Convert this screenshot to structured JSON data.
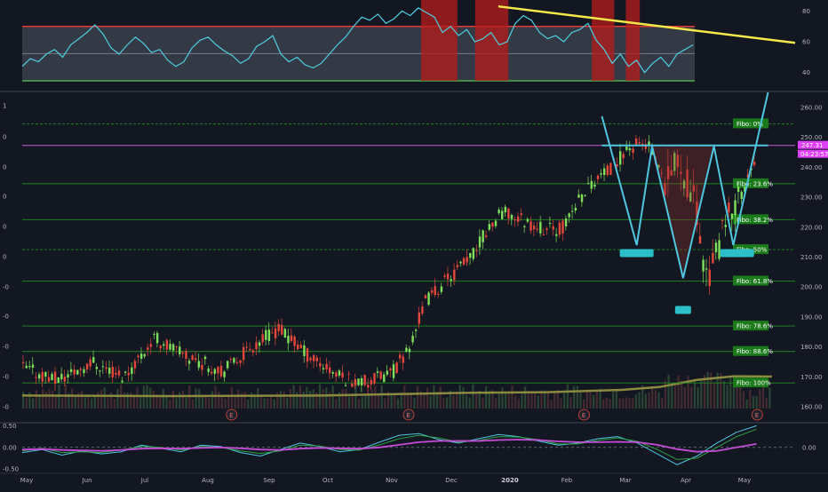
{
  "chart_data": [
    {
      "panel": "rsi",
      "type": "line",
      "y_ticks": [
        "80",
        "60",
        "40"
      ],
      "ylim": [
        30,
        86
      ],
      "band_upper": 70,
      "band_lower": 30,
      "values": [
        44,
        49,
        47,
        52,
        55,
        50,
        58,
        62,
        66,
        71,
        65,
        56,
        52,
        58,
        63,
        59,
        53,
        55,
        48,
        44,
        47,
        56,
        61,
        63,
        58,
        54,
        51,
        46,
        49,
        57,
        60,
        64,
        52,
        47,
        50,
        45,
        43,
        46,
        52,
        58,
        63,
        70,
        76,
        74,
        78,
        72,
        75,
        80,
        77,
        82,
        79,
        76,
        66,
        70,
        64,
        68,
        60,
        62,
        66,
        58,
        60,
        72,
        77,
        74,
        66,
        62,
        64,
        60,
        66,
        68,
        72,
        61,
        55,
        46,
        52,
        44,
        48,
        40,
        46,
        50,
        44,
        52,
        55,
        58
      ],
      "overbought_strips": [
        [
          0.516,
          0.563
        ],
        [
          0.586,
          0.629
        ],
        [
          0.737,
          0.766
        ],
        [
          0.781,
          0.799
        ]
      ],
      "trendline": [
        [
          0.616,
          83
        ],
        [
          1.0,
          57
        ]
      ],
      "colors": {
        "line": "#4dd0e1",
        "upper": "#e53935",
        "lower": "#4caf50",
        "trend": "#f5e94a"
      }
    },
    {
      "panel": "price",
      "type": "candlestick",
      "ylim": [
        155,
        265
      ],
      "y_ticks": [
        "260.00",
        "250.00",
        "240.00",
        "230.00",
        "220.00",
        "210.00",
        "200.00",
        "190.00",
        "180.00",
        "170.00",
        "160.00"
      ],
      "left_ticks": [
        "1",
        "0",
        "0",
        "0",
        "0",
        "0",
        "-0",
        "-0",
        "-0",
        "-0",
        "-0",
        "-1"
      ],
      "trend": [
        [
          0,
          173
        ],
        [
          0.045,
          169
        ],
        [
          0.09,
          175
        ],
        [
          0.13,
          170
        ],
        [
          0.17,
          183
        ],
        [
          0.21,
          177
        ],
        [
          0.26,
          172
        ],
        [
          0.3,
          181
        ],
        [
          0.33,
          186
        ],
        [
          0.37,
          177
        ],
        [
          0.41,
          170
        ],
        [
          0.445,
          168
        ],
        [
          0.48,
          172
        ],
        [
          0.5,
          180
        ],
        [
          0.52,
          195
        ],
        [
          0.55,
          203
        ],
        [
          0.58,
          210
        ],
        [
          0.6,
          219
        ],
        [
          0.62,
          225
        ],
        [
          0.65,
          222
        ],
        [
          0.68,
          219
        ],
        [
          0.7,
          220
        ],
        [
          0.72,
          230
        ],
        [
          0.74,
          236
        ],
        [
          0.76,
          239
        ],
        [
          0.78,
          246
        ],
        [
          0.8,
          248
        ],
        [
          0.81,
          247
        ],
        [
          0.83,
          233
        ],
        [
          0.85,
          243
        ],
        [
          0.87,
          226
        ],
        [
          0.885,
          203
        ],
        [
          0.9,
          213
        ],
        [
          0.92,
          228
        ],
        [
          0.935,
          235
        ],
        [
          0.95,
          242
        ]
      ],
      "volume_ma": [
        [
          0.0,
          0.3
        ],
        [
          0.2,
          0.28
        ],
        [
          0.4,
          0.3
        ],
        [
          0.5,
          0.35
        ],
        [
          0.6,
          0.4
        ],
        [
          0.7,
          0.42
        ],
        [
          0.8,
          0.5
        ],
        [
          0.85,
          0.6
        ],
        [
          0.9,
          0.85
        ],
        [
          0.95,
          0.98
        ],
        [
          1.0,
          0.97
        ]
      ],
      "last_price": "247.31",
      "countdown": "04:23:57",
      "resistance": 247.3,
      "fibo_levels": [
        {
          "label": "Fibo:  0%",
          "value": 254.5
        },
        {
          "label": "Fibo: 23.6%",
          "value": 234.5
        },
        {
          "label": "Fibo: 38.2%",
          "value": 222.5
        },
        {
          "label": "Fibo:  50%",
          "value": 212.5
        },
        {
          "label": "Fibo: 61.8%",
          "value": 202
        },
        {
          "label": "Fibo: 78.6%",
          "value": 187
        },
        {
          "label": "Fibo: 88.6%",
          "value": 178.5
        },
        {
          "label": "Fibo: 100%",
          "value": 168
        }
      ],
      "pattern_lines": [
        [
          [
            0.75,
            257
          ],
          [
            0.795,
            214
          ],
          [
            0.815,
            247
          ]
        ],
        [
          [
            0.815,
            247
          ],
          [
            0.855,
            203
          ],
          [
            0.895,
            247
          ]
        ],
        [
          [
            0.895,
            247
          ],
          [
            0.92,
            214
          ],
          [
            0.965,
            265
          ]
        ]
      ],
      "neckline": {
        "from": [
          0.75,
          247.3
        ],
        "to": [
          0.965,
          247.3
        ]
      },
      "markers": [
        {
          "x": 0.795,
          "y": 211.5
        },
        {
          "x": 0.855,
          "y": 192.5
        },
        {
          "x": 0.925,
          "y": 211.5
        }
      ],
      "earnings_label": "E",
      "earnings_x": [
        0.271,
        0.5,
        0.727,
        0.951
      ],
      "colors": {
        "up": "#7fe05a",
        "down": "#e5483a",
        "pattern": "#4fc6e0",
        "fibo": "#1f8a1f",
        "resistance": "#c25fcf",
        "vol_ma": "#8c8a3e"
      }
    },
    {
      "panel": "macd",
      "type": "line",
      "y_ticks": [
        "0.50",
        "0.00",
        "-0.50"
      ],
      "right_ticks": [
        "0.00"
      ],
      "ylim": [
        -0.6,
        0.55
      ],
      "x_labels": [
        "May",
        "Jun",
        "Jul",
        "Aug",
        "Sep",
        "Oct",
        "Nov",
        "Dec",
        "2020",
        "Feb",
        "Mar",
        "Apr",
        "May"
      ],
      "series": [
        {
          "color": "#4fc6e0",
          "values": [
            -0.12,
            -0.05,
            -0.18,
            -0.08,
            -0.15,
            -0.1,
            0.05,
            -0.02,
            -0.1,
            0.05,
            0.02,
            -0.12,
            -0.2,
            -0.05,
            0.1,
            0.02,
            -0.1,
            -0.05,
            0.12,
            0.28,
            0.32,
            0.18,
            0.1,
            0.2,
            0.3,
            0.25,
            0.15,
            0.05,
            0.1,
            0.2,
            0.25,
            0.1,
            -0.15,
            -0.4,
            -0.2,
            0.1,
            0.35,
            0.5
          ]
        },
        {
          "color": "#2ea043",
          "values": [
            -0.08,
            -0.02,
            -0.12,
            -0.1,
            -0.12,
            -0.06,
            0.02,
            0.0,
            -0.06,
            0.02,
            0.0,
            -0.08,
            -0.14,
            -0.08,
            0.05,
            0.03,
            -0.05,
            -0.06,
            0.06,
            0.2,
            0.28,
            0.22,
            0.12,
            0.16,
            0.25,
            0.24,
            0.18,
            0.08,
            0.08,
            0.16,
            0.22,
            0.14,
            -0.05,
            -0.28,
            -0.25,
            0.0,
            0.25,
            0.42
          ]
        },
        {
          "color": "#c64bd6",
          "values": [
            -0.05,
            -0.04,
            -0.06,
            -0.07,
            -0.08,
            -0.06,
            -0.03,
            -0.02,
            -0.03,
            -0.01,
            0.0,
            -0.02,
            -0.05,
            -0.06,
            -0.03,
            -0.01,
            -0.02,
            -0.03,
            0.0,
            0.06,
            0.12,
            0.15,
            0.15,
            0.15,
            0.17,
            0.18,
            0.17,
            0.14,
            0.12,
            0.12,
            0.13,
            0.12,
            0.06,
            -0.04,
            -0.1,
            -0.08,
            0.0,
            0.08
          ]
        }
      ],
      "colors": {
        "line": "#4fc6e0",
        "signal": "#2ea043",
        "slow": "#c64bd6"
      }
    }
  ]
}
